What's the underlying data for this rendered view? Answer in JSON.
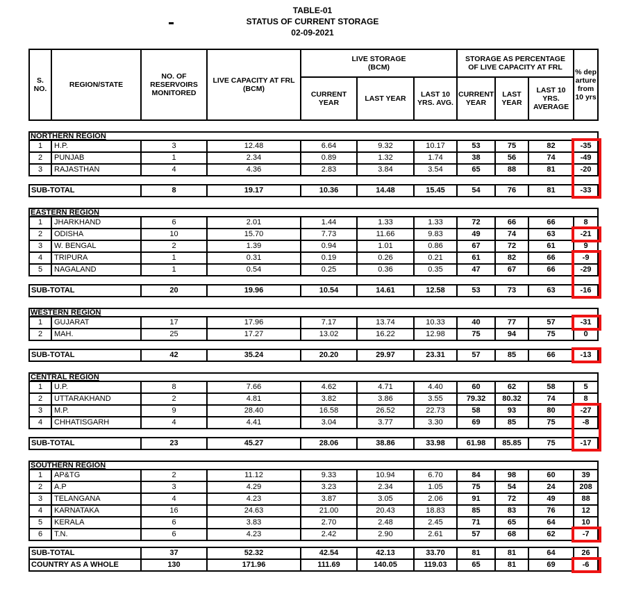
{
  "title": {
    "line1": "TABLE-01",
    "line2": "STATUS OF CURRENT STORAGE",
    "line3": "02-09-2021"
  },
  "table": {
    "headers": {
      "s_no": "S. NO.",
      "region_state": "REGION/STATE",
      "reservoirs": "NO. OF RESERVOIRS MONITORED",
      "live_capacity": "LIVE CAPACITY AT FRL (BCM)",
      "live_storage_group": "LIVE STORAGE (BCM)",
      "pct_group": "STORAGE AS PERCENTAGE OF LIVE CAPACITY AT FRL",
      "current_year": "CURRENT YEAR",
      "last_year": "LAST YEAR",
      "last10_avg": "LAST 10 YRS. AVG.",
      "pct_current_year": "CURRENT YEAR",
      "pct_last_year": "LAST YEAR",
      "pct_last10": "LAST 10 YRS. AVERAGE",
      "departure": "% departure from 10 yrs"
    },
    "sections": [
      {
        "id": "northern",
        "name": "NORTHERN REGION",
        "rows": [
          {
            "sno": "1",
            "state": "H.P.",
            "reservoirs": "3",
            "capacity": "12.48",
            "cur": "6.64",
            "last": "9.32",
            "avg10": "10.17",
            "pcur": "53",
            "plast": "75",
            "pavg": "82",
            "dep": "-35"
          },
          {
            "sno": "2",
            "state": "PUNJAB",
            "reservoirs": "1",
            "capacity": "2.34",
            "cur": "0.89",
            "last": "1.32",
            "avg10": "1.74",
            "pcur": "38",
            "plast": "56",
            "pavg": "74",
            "dep": "-49"
          },
          {
            "sno": "3",
            "state": "RAJASTHAN",
            "reservoirs": "4",
            "capacity": "4.36",
            "cur": "2.83",
            "last": "3.84",
            "avg10": "3.54",
            "pcur": "65",
            "plast": "88",
            "pavg": "81",
            "dep": "-20"
          }
        ],
        "subtotal": {
          "label": "SUB-TOTAL",
          "reservoirs": "8",
          "capacity": "19.17",
          "cur": "10.36",
          "last": "14.48",
          "avg10": "15.45",
          "pcur": "54",
          "plast": "76",
          "pavg": "81",
          "dep": "-33"
        }
      },
      {
        "id": "eastern",
        "name": "EASTERN REGION",
        "rows": [
          {
            "sno": "1",
            "state": "JHARKHAND",
            "reservoirs": "6",
            "capacity": "2.01",
            "cur": "1.44",
            "last": "1.33",
            "avg10": "1.33",
            "pcur": "72",
            "plast": "66",
            "pavg": "66",
            "dep": "8"
          },
          {
            "sno": "2",
            "state": "ODISHA",
            "reservoirs": "10",
            "capacity": "15.70",
            "cur": "7.73",
            "last": "11.66",
            "avg10": "9.83",
            "pcur": "49",
            "plast": "74",
            "pavg": "63",
            "dep": "-21"
          },
          {
            "sno": "3",
            "state": "W. BENGAL",
            "reservoirs": "2",
            "capacity": "1.39",
            "cur": "0.94",
            "last": "1.01",
            "avg10": "0.86",
            "pcur": "67",
            "plast": "72",
            "pavg": "61",
            "dep": "9"
          },
          {
            "sno": "4",
            "state": "TRIPURA",
            "reservoirs": "1",
            "capacity": "0.31",
            "cur": "0.19",
            "last": "0.26",
            "avg10": "0.21",
            "pcur": "61",
            "plast": "82",
            "pavg": "66",
            "dep": "-9"
          },
          {
            "sno": "5",
            "state": "NAGALAND",
            "reservoirs": "1",
            "capacity": "0.54",
            "cur": "0.25",
            "last": "0.36",
            "avg10": "0.35",
            "pcur": "47",
            "plast": "67",
            "pavg": "66",
            "dep": "-29"
          }
        ],
        "subtotal": {
          "label": "SUB-TOTAL",
          "reservoirs": "20",
          "capacity": "19.96",
          "cur": "10.54",
          "last": "14.61",
          "avg10": "12.58",
          "pcur": "53",
          "plast": "73",
          "pavg": "63",
          "dep": "-16"
        }
      },
      {
        "id": "western",
        "name": "WESTERN REGION",
        "rows": [
          {
            "sno": "1",
            "state": "GUJARAT",
            "reservoirs": "17",
            "capacity": "17.96",
            "cur": "7.17",
            "last": "13.74",
            "avg10": "10.33",
            "pcur": "40",
            "plast": "77",
            "pavg": "57",
            "dep": "-31"
          },
          {
            "sno": "2",
            "state": "MAH.",
            "reservoirs": "25",
            "capacity": "17.27",
            "cur": "13.02",
            "last": "16.22",
            "avg10": "12.98",
            "pcur": "75",
            "plast": "94",
            "pavg": "75",
            "dep": "0"
          }
        ],
        "subtotal": {
          "label": "SUB-TOTAL",
          "reservoirs": "42",
          "capacity": "35.24",
          "cur": "20.20",
          "last": "29.97",
          "avg10": "23.31",
          "pcur": "57",
          "plast": "85",
          "pavg": "66",
          "dep": "-13"
        }
      },
      {
        "id": "central",
        "name": "CENTRAL REGION",
        "rows": [
          {
            "sno": "1",
            "state": "U.P.",
            "reservoirs": "8",
            "capacity": "7.66",
            "cur": "4.62",
            "last": "4.71",
            "avg10": "4.40",
            "pcur": "60",
            "plast": "62",
            "pavg": "58",
            "dep": "5"
          },
          {
            "sno": "2",
            "state": "UTTARAKHAND",
            "reservoirs": "2",
            "capacity": "4.81",
            "cur": "3.82",
            "last": "3.86",
            "avg10": "3.55",
            "pcur": "79.32",
            "plast": "80.32",
            "pavg": "74",
            "dep": "8"
          },
          {
            "sno": "3",
            "state": "M.P.",
            "reservoirs": "9",
            "capacity": "28.40",
            "cur": "16.58",
            "last": "26.52",
            "avg10": "22.73",
            "pcur": "58",
            "plast": "93",
            "pavg": "80",
            "dep": "-27"
          },
          {
            "sno": "4",
            "state": "CHHATISGARH",
            "reservoirs": "4",
            "capacity": "4.41",
            "cur": "3.04",
            "last": "3.77",
            "avg10": "3.30",
            "pcur": "69",
            "plast": "85",
            "pavg": "75",
            "dep": "-8"
          }
        ],
        "subtotal": {
          "label": "SUB-TOTAL",
          "reservoirs": "23",
          "capacity": "45.27",
          "cur": "28.06",
          "last": "38.86",
          "avg10": "33.98",
          "pcur": "61.98",
          "plast": "85.85",
          "pavg": "75",
          "dep": "-17"
        }
      },
      {
        "id": "southern",
        "name": "SOUTHERN REGION",
        "rows": [
          {
            "sno": "1",
            "state": "AP&TG",
            "reservoirs": "2",
            "capacity": "11.12",
            "cur": "9.33",
            "last": "10.94",
            "avg10": "6.70",
            "pcur": "84",
            "plast": "98",
            "pavg": "60",
            "dep": "39"
          },
          {
            "sno": "2",
            "state": "A.P",
            "reservoirs": "3",
            "capacity": "4.29",
            "cur": "3.23",
            "last": "2.34",
            "avg10": "1.05",
            "pcur": "75",
            "plast": "54",
            "pavg": "24",
            "dep": "208"
          },
          {
            "sno": "3",
            "state": "TELANGANA",
            "reservoirs": "4",
            "capacity": "4.23",
            "cur": "3.87",
            "last": "3.05",
            "avg10": "2.06",
            "pcur": "91",
            "plast": "72",
            "pavg": "49",
            "dep": "88"
          },
          {
            "sno": "4",
            "state": "KARNATAKA",
            "reservoirs": "16",
            "capacity": "24.63",
            "cur": "21.00",
            "last": "20.43",
            "avg10": "18.83",
            "pcur": "85",
            "plast": "83",
            "pavg": "76",
            "dep": "12"
          },
          {
            "sno": "5",
            "state": "KERALA",
            "reservoirs": "6",
            "capacity": "3.83",
            "cur": "2.70",
            "last": "2.48",
            "avg10": "2.45",
            "pcur": "71",
            "plast": "65",
            "pavg": "64",
            "dep": "10"
          },
          {
            "sno": "6",
            "state": "T.N.",
            "reservoirs": "6",
            "capacity": "4.23",
            "cur": "2.42",
            "last": "2.90",
            "avg10": "2.61",
            "pcur": "57",
            "plast": "68",
            "pavg": "62",
            "dep": "-7"
          }
        ]
      }
    ],
    "final_block": {
      "rows": [
        {
          "id": "southern-sub",
          "label": "SUB-TOTAL",
          "reservoirs": "37",
          "capacity": "52.32",
          "cur": "42.54",
          "last": "42.13",
          "avg10": "33.70",
          "pcur": "81",
          "plast": "81",
          "pavg": "64",
          "dep": "26"
        },
        {
          "id": "country",
          "label": "COUNTRY AS A WHOLE",
          "reservoirs": "130",
          "capacity": "171.96",
          "cur": "111.69",
          "last": "140.05",
          "avg10": "119.03",
          "pcur": "65",
          "plast": "81",
          "pavg": "69",
          "dep": "-6"
        }
      ]
    },
    "highlight_color": "#ee1414",
    "highlights": [
      {
        "from": "northern-1",
        "to": "northern-sub"
      },
      {
        "from": "eastern-2",
        "to": "eastern-2"
      },
      {
        "from": "eastern-4",
        "to": "eastern-sub"
      },
      {
        "from": "western-1",
        "to": "western-1"
      },
      {
        "from": "western-sub",
        "to": "western-sub"
      },
      {
        "from": "central-3",
        "to": "central-sub"
      },
      {
        "from": "southern-6",
        "to": "southern-6"
      },
      {
        "from": "country",
        "to": "country"
      }
    ]
  }
}
